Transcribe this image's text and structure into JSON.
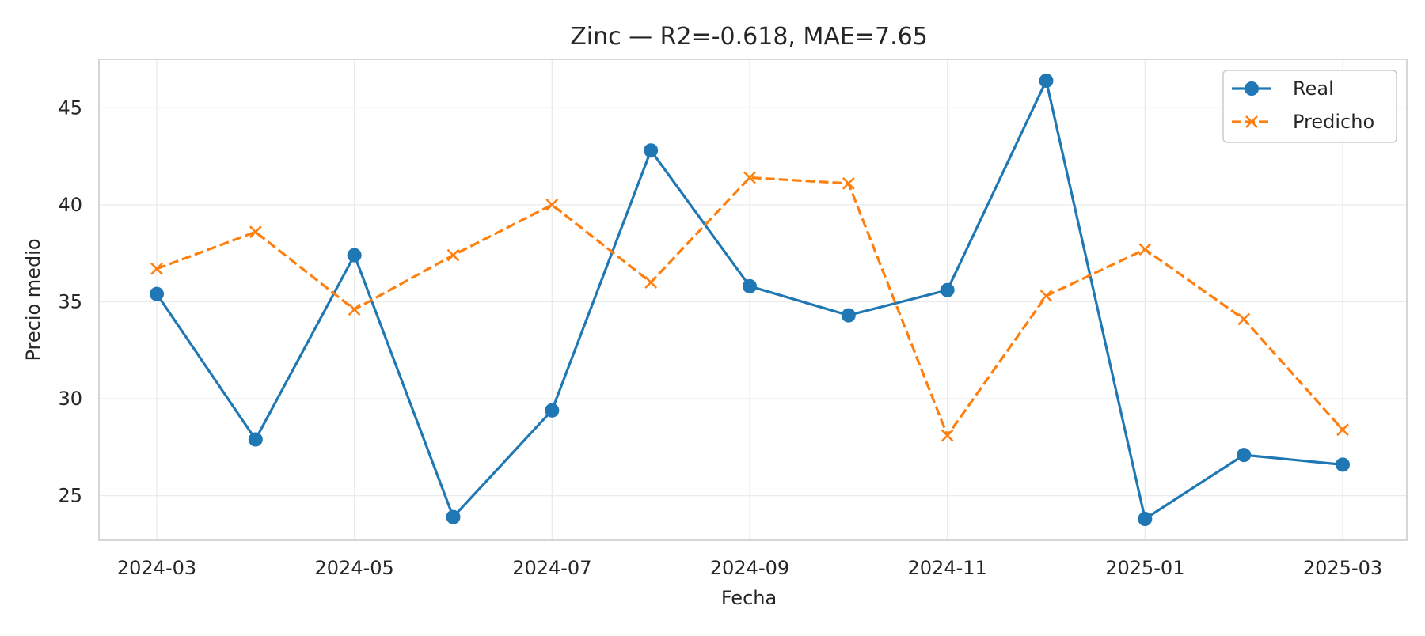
{
  "chart_data": {
    "type": "line",
    "title": "Zinc — R2=-0.618, MAE=7.65",
    "xlabel": "Fecha",
    "ylabel": "Precio medio",
    "x": [
      "2024-03",
      "2024-04",
      "2024-05",
      "2024-06",
      "2024-07",
      "2024-08",
      "2024-09",
      "2024-10",
      "2024-11",
      "2024-12",
      "2025-01",
      "2025-02",
      "2025-03"
    ],
    "x_ticks": [
      "2024-03",
      "2024-05",
      "2024-07",
      "2024-09",
      "2024-11",
      "2025-01",
      "2025-03"
    ],
    "y_ticks": [
      25,
      30,
      35,
      40,
      45
    ],
    "ylim": [
      22.7,
      47.5
    ],
    "grid": true,
    "legend_position": "top-right",
    "series": [
      {
        "name": "Real",
        "color": "#1f77b4",
        "line_style": "solid",
        "marker": "circle",
        "values": [
          35.4,
          27.9,
          37.4,
          23.9,
          29.4,
          42.8,
          35.8,
          34.3,
          35.6,
          46.4,
          23.8,
          27.1,
          26.6
        ]
      },
      {
        "name": "Predicho",
        "color": "#ff7f0e",
        "line_style": "dashed",
        "marker": "x",
        "values": [
          36.7,
          38.6,
          34.6,
          37.4,
          40.0,
          36.0,
          41.4,
          41.1,
          28.1,
          35.3,
          37.7,
          34.1,
          28.4
        ]
      }
    ]
  }
}
